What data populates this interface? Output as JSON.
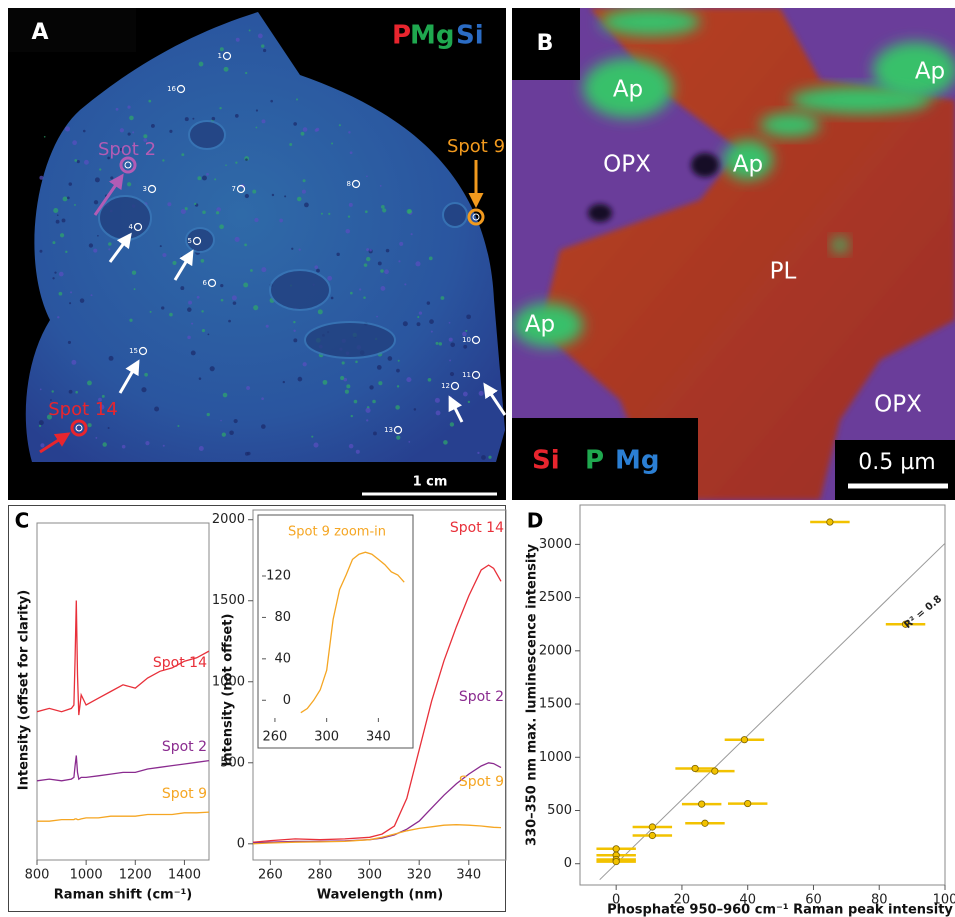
{
  "panel_a": {
    "label": "A",
    "channels": [
      {
        "label": "P",
        "color": "#e8252e"
      },
      {
        "label": "Mg",
        "color": "#1fa84f"
      },
      {
        "label": "Si",
        "color": "#2b6cc4"
      }
    ],
    "spots": [
      "1",
      "16",
      "3",
      "7",
      "8",
      "4",
      "5",
      "6",
      "10",
      "11",
      "12",
      "13",
      "15"
    ],
    "callouts": [
      {
        "label": "Spot 2",
        "color": "#b25cb5"
      },
      {
        "label": "Spot 9",
        "color": "#f29a1e"
      },
      {
        "label": "Spot 14",
        "color": "#e8252e"
      }
    ],
    "scale_bar": "1 cm"
  },
  "panel_b": {
    "label": "B",
    "phases": [
      "Ap",
      "Ap",
      "OPX",
      "Ap",
      "PL",
      "Ap",
      "OPX"
    ],
    "channels": [
      {
        "label": "Si",
        "color": "#e8252e"
      },
      {
        "label": "P",
        "color": "#1fa84f"
      },
      {
        "label": "Mg",
        "color": "#2b7fd4"
      }
    ],
    "scale_bar": "0.5 µm"
  },
  "chart_data": [
    {
      "type": "line",
      "panel": "C",
      "x_label": "Raman shift (cm⁻¹)",
      "y_label": "Intensity (offset for clarity)",
      "x": [
        800,
        850,
        900,
        940,
        950,
        955,
        960,
        965,
        970,
        980,
        1000,
        1050,
        1100,
        1150,
        1200,
        1250,
        1300,
        1350,
        1400,
        1450,
        1500
      ],
      "series": [
        {
          "name": "Spot 14",
          "color": "#e8303a",
          "values": [
            4.4,
            4.5,
            4.4,
            4.5,
            4.6,
            6.0,
            7.7,
            5.5,
            4.3,
            4.9,
            4.6,
            4.8,
            5.0,
            5.2,
            5.1,
            5.4,
            5.6,
            5.7,
            5.9,
            6.0,
            6.2
          ]
        },
        {
          "name": "Spot 2",
          "color": "#8a2b8f",
          "values": [
            2.35,
            2.4,
            2.35,
            2.4,
            2.45,
            2.8,
            3.1,
            2.6,
            2.4,
            2.45,
            2.45,
            2.5,
            2.55,
            2.6,
            2.6,
            2.7,
            2.75,
            2.8,
            2.85,
            2.9,
            2.95
          ]
        },
        {
          "name": "Spot 9",
          "color": "#f5a623",
          "values": [
            1.15,
            1.15,
            1.2,
            1.2,
            1.2,
            1.22,
            1.22,
            1.2,
            1.2,
            1.22,
            1.25,
            1.25,
            1.3,
            1.3,
            1.3,
            1.35,
            1.35,
            1.35,
            1.4,
            1.4,
            1.42
          ]
        }
      ],
      "xlim": [
        800,
        1500
      ],
      "xticks": [
        800,
        1000,
        1200,
        1400
      ],
      "ylim": [
        0,
        10
      ]
    },
    {
      "type": "line",
      "x_label": "Wavelength (nm)",
      "y_label": "Intensity (not offset)",
      "x": [
        253,
        260,
        270,
        280,
        290,
        300,
        305,
        310,
        315,
        320,
        325,
        330,
        335,
        340,
        345,
        348,
        350,
        353
      ],
      "series": [
        {
          "name": "Spot 14",
          "color": "#e8303a",
          "values": [
            10,
            20,
            30,
            25,
            30,
            40,
            60,
            110,
            280,
            580,
            880,
            1130,
            1340,
            1530,
            1690,
            1720,
            1700,
            1620
          ]
        },
        {
          "name": "Spot 2",
          "color": "#8a2b8f",
          "values": [
            5,
            10,
            15,
            15,
            18,
            25,
            35,
            55,
            90,
            140,
            220,
            300,
            370,
            430,
            480,
            500,
            495,
            470
          ]
        },
        {
          "name": "Spot 9",
          "color": "#f5a623",
          "values": [
            0,
            5,
            10,
            12,
            15,
            25,
            40,
            60,
            80,
            95,
            105,
            115,
            118,
            115,
            110,
            105,
            102,
            100
          ]
        }
      ],
      "xlim": [
        253,
        355
      ],
      "xticks": [
        260,
        280,
        300,
        320,
        340
      ],
      "ylim": [
        -100,
        2060
      ],
      "yticks": [
        0,
        500,
        1000,
        1500,
        2000
      ]
    },
    {
      "type": "line",
      "title": "Spot 9 zoom-in",
      "color": "#f5a623",
      "x": [
        280,
        285,
        290,
        295,
        300,
        305,
        310,
        315,
        320,
        325,
        330,
        335,
        340,
        345,
        350,
        355,
        360
      ],
      "values": [
        -12,
        -8,
        0,
        10,
        29,
        78,
        107,
        121,
        136,
        141,
        143,
        141,
        136,
        131,
        124,
        121,
        114
      ],
      "xlim": [
        250,
        366
      ],
      "xticks": [
        260,
        300,
        340
      ],
      "ylim": [
        -21,
        176
      ],
      "yticks": [
        0,
        40,
        80,
        120
      ]
    },
    {
      "type": "scatter",
      "panel": "D",
      "x_label": "Phosphate 950–960 cm⁻¹ Raman peak intensity",
      "y_label": "330–350 nm max. luminescence intensity",
      "color": "#f2c200",
      "x": [
        65,
        88,
        39,
        24,
        30,
        11,
        11,
        27,
        26,
        40,
        0,
        0,
        0,
        0
      ],
      "values": [
        3210,
        2250,
        1165,
        895,
        870,
        345,
        265,
        380,
        560,
        565,
        140,
        80,
        40,
        20
      ],
      "x_error": [
        6,
        6,
        6,
        6,
        6,
        6,
        6,
        6,
        6,
        6,
        6,
        6,
        6,
        6
      ],
      "fit": {
        "x": [
          -5,
          100
        ],
        "values": [
          -150,
          3010
        ]
      },
      "annotation": "R² = 0.8",
      "xlim": [
        -11,
        100
      ],
      "xticks": [
        0,
        20,
        40,
        60,
        80,
        100
      ],
      "ylim": [
        -200,
        3370
      ],
      "yticks": [
        0,
        500,
        1000,
        1500,
        2000,
        2500,
        3000
      ]
    }
  ]
}
